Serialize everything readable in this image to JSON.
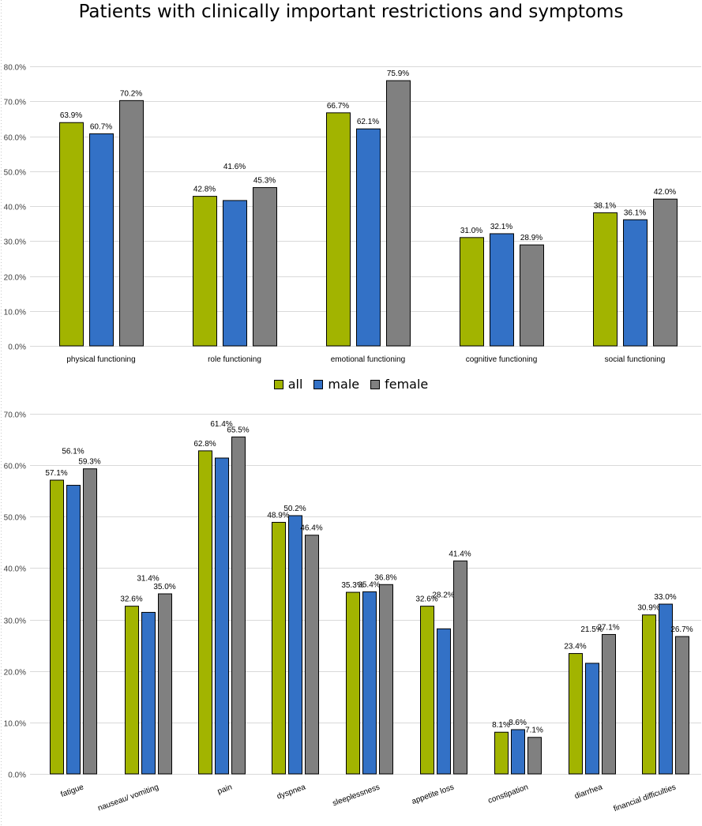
{
  "title": "Patients with clinically important restrictions and symptoms",
  "colors": {
    "all": "#a2b400",
    "male": "#3371c6",
    "female": "#808080"
  },
  "legend": [
    {
      "name": "all",
      "label": "all",
      "color": "#a2b400"
    },
    {
      "name": "male",
      "label": "male",
      "color": "#3371c6"
    },
    {
      "name": "female",
      "label": "female",
      "color": "#808080"
    }
  ],
  "chart_data": [
    {
      "type": "bar",
      "categories": [
        "physical functioning",
        "role functioning",
        "emotional functioning",
        "cognitive functioning",
        "social functioning"
      ],
      "series": [
        {
          "name": "all",
          "values": [
            63.9,
            42.8,
            66.7,
            31.0,
            38.1
          ],
          "labels": [
            "63.9%",
            "42.8%",
            "66.7%",
            "31.0%",
            "38.1%"
          ]
        },
        {
          "name": "male",
          "values": [
            60.7,
            41.6,
            62.1,
            32.1,
            36.1
          ],
          "labels": [
            "60.7%",
            "41.6%",
            "62.1%",
            "32.1%",
            "36.1%"
          ]
        },
        {
          "name": "female",
          "values": [
            70.2,
            45.3,
            75.9,
            28.9,
            42.0
          ],
          "labels": [
            "70.2%",
            "45.3%",
            "75.9%",
            "28.9%",
            "42.0%"
          ]
        }
      ],
      "ylim": [
        0,
        80
      ],
      "yticks": [
        "0.0%",
        "10.0%",
        "20.0%",
        "30.0%",
        "40.0%",
        "50.0%",
        "60.0%",
        "70.0%",
        "80.0%"
      ],
      "grid": true,
      "legend_position": "bottom"
    },
    {
      "type": "bar",
      "categories": [
        "fatigue",
        "nauseau/ vomiting",
        "pain",
        "dyspnea",
        "sleeplessness",
        "appetite loss",
        "constipation",
        "diarrhea",
        "financial difficulties"
      ],
      "series": [
        {
          "name": "all",
          "values": [
            57.1,
            32.6,
            62.8,
            48.9,
            35.3,
            32.6,
            8.1,
            23.4,
            30.9
          ],
          "labels": [
            "57.1%",
            "32.6%",
            "62.8%",
            "48.9%",
            "35.3%",
            "32.6%",
            "8.1%",
            "23.4%",
            "30.9%"
          ]
        },
        {
          "name": "male",
          "values": [
            56.1,
            31.4,
            61.4,
            50.2,
            35.4,
            28.2,
            8.6,
            21.5,
            33.0
          ],
          "labels": [
            "56.1%",
            "31.4%",
            "61.4%",
            "50.2%",
            "35.4%",
            "28.2%",
            "8.6%",
            "21.5%",
            "33.0%"
          ]
        },
        {
          "name": "female",
          "values": [
            59.3,
            35.0,
            65.5,
            46.4,
            36.8,
            41.4,
            7.1,
            27.1,
            26.7
          ],
          "labels": [
            "59.3%",
            "35.0%",
            "65.5%",
            "46.4%",
            "36.8%",
            "41.4%",
            "7.1%",
            "27.1%",
            "26.7%"
          ]
        }
      ],
      "ylim": [
        0,
        70
      ],
      "yticks": [
        "0.0%",
        "10.0%",
        "20.0%",
        "30.0%",
        "40.0%",
        "50.0%",
        "60.0%",
        "70.0%"
      ],
      "grid": true,
      "xlabel_rotation": "slanted"
    }
  ]
}
